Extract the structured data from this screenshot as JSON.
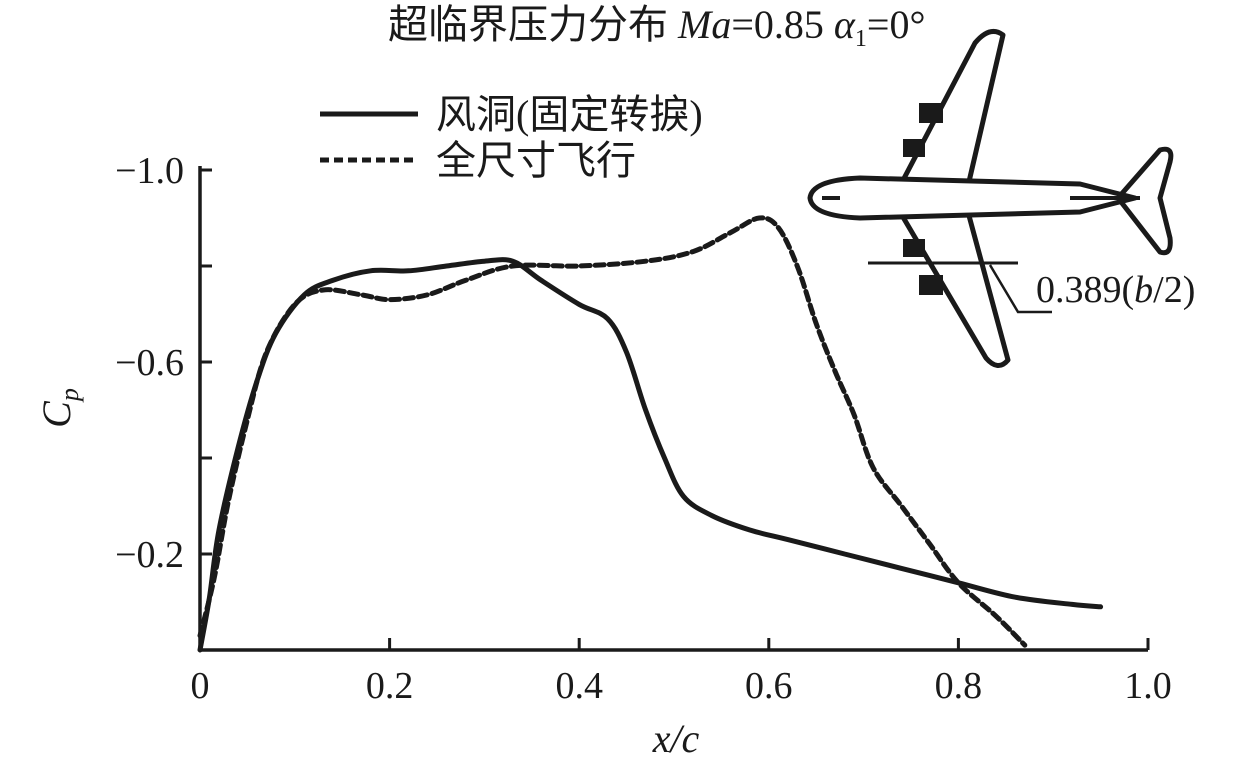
{
  "chart_data": {
    "type": "line",
    "title_main": "超临界压力分布 ",
    "title_ma": "Ma",
    "title_ma_value": "=0.85 ",
    "title_alpha": "α",
    "title_alpha_sub": "1",
    "title_alpha_value": "=0°",
    "xlabel": "x/c",
    "ylabel_main": "C",
    "ylabel_sub": "p",
    "xlim": [
      0,
      1.0
    ],
    "ylim": [
      0,
      -1.1
    ],
    "y_inverted": true,
    "xticks": [
      {
        "value": 0,
        "label": "0"
      },
      {
        "value": 0.2,
        "label": "0.2"
      },
      {
        "value": 0.4,
        "label": "0.4"
      },
      {
        "value": 0.6,
        "label": "0.6"
      },
      {
        "value": 0.8,
        "label": "0.8"
      },
      {
        "value": 1.0,
        "label": "1.0"
      }
    ],
    "yticks": [
      {
        "value": -1.0,
        "label": "−1.0"
      },
      {
        "value": -0.8,
        "label": ""
      },
      {
        "value": -0.6,
        "label": "−0.6"
      },
      {
        "value": -0.4,
        "label": ""
      },
      {
        "value": -0.2,
        "label": "−0.2"
      }
    ],
    "series": [
      {
        "name": "风洞(固定转捩)",
        "style": "solid",
        "points": [
          [
            0.0,
            0.0
          ],
          [
            0.01,
            -0.11
          ],
          [
            0.02,
            -0.25
          ],
          [
            0.04,
            -0.42
          ],
          [
            0.06,
            -0.56
          ],
          [
            0.08,
            -0.66
          ],
          [
            0.11,
            -0.74
          ],
          [
            0.14,
            -0.77
          ],
          [
            0.18,
            -0.79
          ],
          [
            0.22,
            -0.79
          ],
          [
            0.26,
            -0.8
          ],
          [
            0.3,
            -0.81
          ],
          [
            0.33,
            -0.81
          ],
          [
            0.36,
            -0.77
          ],
          [
            0.4,
            -0.72
          ],
          [
            0.43,
            -0.69
          ],
          [
            0.45,
            -0.62
          ],
          [
            0.47,
            -0.5
          ],
          [
            0.49,
            -0.4
          ],
          [
            0.51,
            -0.32
          ],
          [
            0.54,
            -0.28
          ],
          [
            0.58,
            -0.25
          ],
          [
            0.62,
            -0.23
          ],
          [
            0.68,
            -0.2
          ],
          [
            0.74,
            -0.17
          ],
          [
            0.8,
            -0.14
          ],
          [
            0.86,
            -0.11
          ],
          [
            0.92,
            -0.095
          ],
          [
            0.95,
            -0.09
          ]
        ]
      },
      {
        "name": "全尺寸飞行",
        "style": "dashed",
        "points": [
          [
            0.0,
            -0.03
          ],
          [
            0.015,
            -0.15
          ],
          [
            0.03,
            -0.31
          ],
          [
            0.05,
            -0.48
          ],
          [
            0.07,
            -0.62
          ],
          [
            0.1,
            -0.72
          ],
          [
            0.13,
            -0.75
          ],
          [
            0.17,
            -0.74
          ],
          [
            0.2,
            -0.73
          ],
          [
            0.24,
            -0.74
          ],
          [
            0.28,
            -0.77
          ],
          [
            0.33,
            -0.8
          ],
          [
            0.4,
            -0.8
          ],
          [
            0.47,
            -0.81
          ],
          [
            0.52,
            -0.83
          ],
          [
            0.56,
            -0.87
          ],
          [
            0.59,
            -0.9
          ],
          [
            0.61,
            -0.88
          ],
          [
            0.63,
            -0.8
          ],
          [
            0.65,
            -0.68
          ],
          [
            0.67,
            -0.58
          ],
          [
            0.69,
            -0.49
          ],
          [
            0.71,
            -0.38
          ],
          [
            0.74,
            -0.3
          ],
          [
            0.77,
            -0.22
          ],
          [
            0.8,
            -0.14
          ],
          [
            0.84,
            -0.07
          ],
          [
            0.87,
            -0.01
          ]
        ]
      }
    ],
    "annotation": {
      "zero": "0",
      "value": ".389(",
      "var": "b",
      "tail": "/2)"
    },
    "colors": {
      "line": "#1a1a1a",
      "background": "#ffffff"
    }
  }
}
